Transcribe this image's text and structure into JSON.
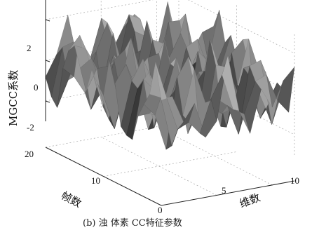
{
  "chart_data": {
    "type": "surface",
    "ylabel": "MGCC系数",
    "frame_axis_label": "帧数",
    "dim_axis_label": "维数",
    "caption": "(b) 浊    体素   CC特征参数",
    "z_ticks": [
      "2",
      "0",
      "-2"
    ],
    "frame_ticks": [
      "20",
      "10",
      "0"
    ],
    "dim_ticks": [
      "5",
      "10"
    ],
    "zlim": [
      -3,
      3
    ],
    "frame_range": [
      0,
      20
    ],
    "dim_range": [
      0,
      12
    ],
    "grid": true,
    "surface_color": "#808080"
  }
}
